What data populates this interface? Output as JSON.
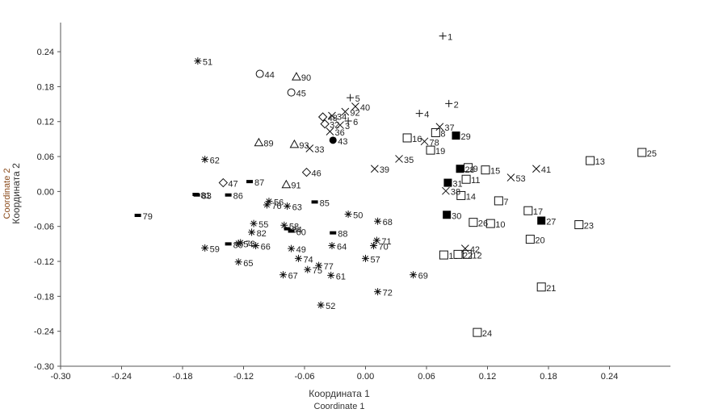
{
  "chart_data": {
    "type": "scatter",
    "xlabel": "Координата 1",
    "xlabel_en": "Coordinate 1",
    "ylabel": "Координата 2",
    "ylabel_en": "Coordinate 2",
    "xlim": [
      -0.3,
      0.3
    ],
    "ylim": [
      -0.3,
      0.29
    ],
    "xticks": [
      "-0.30",
      "-0.24",
      "-0.18",
      "-0.12",
      "-0.06",
      "0.00",
      "0.06",
      "0.12",
      "0.18",
      "0.24"
    ],
    "yticks": [
      "-0.30",
      "-0.24",
      "-0.18",
      "-0.12",
      "-0.06",
      "0.00",
      "0.06",
      "0.12",
      "0.18",
      "0.24"
    ],
    "xtick_values": [
      -0.3,
      -0.24,
      -0.18,
      -0.12,
      -0.06,
      0.0,
      0.06,
      0.12,
      0.18,
      0.24
    ],
    "ytick_values": [
      -0.3,
      -0.24,
      -0.18,
      -0.12,
      -0.06,
      0.0,
      0.06,
      0.12,
      0.18,
      0.24
    ],
    "points": [
      {
        "label": "1",
        "marker": "plus",
        "x": 0.076,
        "y": 0.267
      },
      {
        "label": "2",
        "marker": "plus",
        "x": 0.082,
        "y": 0.151
      },
      {
        "label": "3",
        "marker": "x",
        "x": -0.025,
        "y": 0.114
      },
      {
        "label": "4",
        "marker": "plus",
        "x": 0.053,
        "y": 0.134
      },
      {
        "label": "5",
        "marker": "plus",
        "x": -0.015,
        "y": 0.161
      },
      {
        "label": "6",
        "marker": "plus",
        "x": -0.017,
        "y": 0.121
      },
      {
        "label": "8",
        "marker": "square_open",
        "x": 0.069,
        "y": 0.101
      },
      {
        "label": "9",
        "marker": "square_open",
        "x": 0.101,
        "y": 0.041
      },
      {
        "label": "10",
        "marker": "square_open",
        "x": 0.123,
        "y": -0.055
      },
      {
        "label": "11",
        "marker": "square_open",
        "x": 0.099,
        "y": 0.021
      },
      {
        "label": "12",
        "marker": "square_open",
        "x": 0.1,
        "y": -0.108
      },
      {
        "label": "13",
        "marker": "square_open",
        "x": 0.221,
        "y": 0.053
      },
      {
        "label": "14",
        "marker": "square_open",
        "x": 0.094,
        "y": -0.007
      },
      {
        "label": "15",
        "marker": "square_open",
        "x": 0.118,
        "y": 0.037
      },
      {
        "label": "16",
        "marker": "square_open",
        "x": 0.041,
        "y": 0.092
      },
      {
        "label": "17",
        "marker": "square_open",
        "x": 0.16,
        "y": -0.033
      },
      {
        "label": "18",
        "marker": "square_open",
        "x": 0.077,
        "y": -0.109
      },
      {
        "label": "19",
        "marker": "square_open",
        "x": 0.064,
        "y": 0.071
      },
      {
        "label": "20",
        "marker": "square_open",
        "x": 0.162,
        "y": -0.082
      },
      {
        "label": "21",
        "marker": "square_open",
        "x": 0.173,
        "y": -0.164
      },
      {
        "label": "22",
        "marker": "square_open",
        "x": 0.091,
        "y": -0.108
      },
      {
        "label": "23",
        "marker": "square_open",
        "x": 0.21,
        "y": -0.057
      },
      {
        "label": "24",
        "marker": "square_open",
        "x": 0.11,
        "y": -0.242
      },
      {
        "label": "25",
        "marker": "square_open",
        "x": 0.272,
        "y": 0.067
      },
      {
        "label": "26",
        "marker": "square_open",
        "x": 0.106,
        "y": -0.053
      },
      {
        "label": "7",
        "marker": "square_open",
        "x": 0.131,
        "y": -0.016
      },
      {
        "label": "27",
        "marker": "square_filled",
        "x": 0.173,
        "y": -0.05
      },
      {
        "label": "28",
        "marker": "square_filled",
        "x": 0.093,
        "y": 0.039
      },
      {
        "label": "29",
        "marker": "square_filled",
        "x": 0.089,
        "y": 0.096
      },
      {
        "label": "30",
        "marker": "square_filled",
        "x": 0.08,
        "y": -0.04
      },
      {
        "label": "31",
        "marker": "square_filled",
        "x": 0.081,
        "y": 0.015
      },
      {
        "label": "33",
        "marker": "x",
        "x": -0.055,
        "y": 0.074
      },
      {
        "label": "34",
        "marker": "x",
        "x": -0.033,
        "y": 0.13
      },
      {
        "label": "35",
        "marker": "x",
        "x": 0.033,
        "y": 0.056
      },
      {
        "label": "36",
        "marker": "x",
        "x": -0.035,
        "y": 0.103
      },
      {
        "label": "37",
        "marker": "x",
        "x": 0.073,
        "y": 0.111
      },
      {
        "label": "38",
        "marker": "x",
        "x": 0.079,
        "y": 0.001
      },
      {
        "label": "39",
        "marker": "x",
        "x": 0.009,
        "y": 0.039
      },
      {
        "label": "40",
        "marker": "x",
        "x": -0.01,
        "y": 0.146
      },
      {
        "label": "41",
        "marker": "x",
        "x": 0.168,
        "y": 0.039
      },
      {
        "label": "42",
        "marker": "x",
        "x": 0.098,
        "y": -0.098
      },
      {
        "label": "53",
        "marker": "x",
        "x": 0.143,
        "y": 0.024
      },
      {
        "label": "92",
        "marker": "x",
        "x": -0.02,
        "y": 0.137
      },
      {
        "label": "78",
        "marker": "x",
        "x": 0.058,
        "y": 0.086
      },
      {
        "label": "48",
        "marker": "diamond_open",
        "x": -0.042,
        "y": 0.128
      },
      {
        "label": "32",
        "marker": "diamond_open",
        "x": -0.04,
        "y": 0.116
      },
      {
        "label": "46",
        "marker": "diamond_open",
        "x": -0.058,
        "y": 0.033
      },
      {
        "label": "47",
        "marker": "diamond_open",
        "x": -0.14,
        "y": 0.015
      },
      {
        "label": "43",
        "marker": "circle_filled",
        "x": -0.032,
        "y": 0.088
      },
      {
        "label": "44",
        "marker": "circle_open",
        "x": -0.104,
        "y": 0.202
      },
      {
        "label": "45",
        "marker": "circle_open",
        "x": -0.073,
        "y": 0.17
      },
      {
        "label": "89",
        "marker": "triangle_open",
        "x": -0.105,
        "y": 0.084
      },
      {
        "label": "90",
        "marker": "triangle_open",
        "x": -0.068,
        "y": 0.197
      },
      {
        "label": "91",
        "marker": "triangle_open",
        "x": -0.078,
        "y": 0.012
      },
      {
        "label": "93",
        "marker": "triangle_open",
        "x": -0.07,
        "y": 0.081
      },
      {
        "label": "51",
        "marker": "asterisk",
        "x": -0.165,
        "y": 0.224
      },
      {
        "label": "52",
        "marker": "asterisk",
        "x": -0.044,
        "y": -0.195
      },
      {
        "label": "54",
        "marker": "asterisk",
        "x": -0.125,
        "y": -0.089
      },
      {
        "label": "55",
        "marker": "asterisk",
        "x": -0.11,
        "y": -0.055
      },
      {
        "label": "56",
        "marker": "asterisk",
        "x": -0.095,
        "y": -0.017
      },
      {
        "label": "57",
        "marker": "asterisk",
        "x": 0.0,
        "y": -0.115
      },
      {
        "label": "58",
        "marker": "asterisk",
        "x": -0.08,
        "y": -0.058
      },
      {
        "label": "59",
        "marker": "asterisk",
        "x": -0.158,
        "y": -0.097
      },
      {
        "label": "61",
        "marker": "asterisk",
        "x": -0.034,
        "y": -0.144
      },
      {
        "label": "62",
        "marker": "asterisk",
        "x": -0.158,
        "y": 0.055
      },
      {
        "label": "63",
        "marker": "asterisk",
        "x": -0.077,
        "y": -0.025
      },
      {
        "label": "64",
        "marker": "asterisk",
        "x": -0.033,
        "y": -0.093
      },
      {
        "label": "65",
        "marker": "asterisk",
        "x": -0.125,
        "y": -0.121
      },
      {
        "label": "66",
        "marker": "asterisk",
        "x": -0.108,
        "y": -0.093
      },
      {
        "label": "67",
        "marker": "asterisk",
        "x": -0.081,
        "y": -0.143
      },
      {
        "label": "68",
        "marker": "asterisk",
        "x": 0.012,
        "y": -0.051
      },
      {
        "label": "69",
        "marker": "asterisk",
        "x": 0.047,
        "y": -0.143
      },
      {
        "label": "70",
        "marker": "asterisk",
        "x": 0.008,
        "y": -0.093
      },
      {
        "label": "71",
        "marker": "asterisk",
        "x": 0.011,
        "y": -0.084
      },
      {
        "label": "72",
        "marker": "asterisk",
        "x": 0.012,
        "y": -0.172
      },
      {
        "label": "73",
        "marker": "asterisk",
        "x": -0.123,
        "y": -0.088
      },
      {
        "label": "74",
        "marker": "asterisk",
        "x": -0.066,
        "y": -0.115
      },
      {
        "label": "75",
        "marker": "asterisk",
        "x": -0.057,
        "y": -0.134
      },
      {
        "label": "76",
        "marker": "asterisk",
        "x": -0.097,
        "y": -0.023
      },
      {
        "label": "77",
        "marker": "asterisk",
        "x": -0.046,
        "y": -0.127
      },
      {
        "label": "49",
        "marker": "asterisk",
        "x": -0.073,
        "y": -0.098
      },
      {
        "label": "50",
        "marker": "asterisk",
        "x": -0.017,
        "y": -0.039
      },
      {
        "label": "82",
        "marker": "asterisk",
        "x": -0.112,
        "y": -0.07
      },
      {
        "label": "79",
        "marker": "bar_filled",
        "x": -0.224,
        "y": -0.041
      },
      {
        "label": "80",
        "marker": "bar_filled",
        "x": -0.135,
        "y": -0.09
      },
      {
        "label": "81",
        "marker": "bar_filled",
        "x": -0.167,
        "y": -0.005
      },
      {
        "label": "83",
        "marker": "bar_filled",
        "x": -0.166,
        "y": -0.006
      },
      {
        "label": "84",
        "marker": "bar_filled",
        "x": -0.077,
        "y": -0.064
      },
      {
        "label": "85",
        "marker": "bar_filled",
        "x": -0.05,
        "y": -0.018
      },
      {
        "label": "86",
        "marker": "bar_filled",
        "x": -0.135,
        "y": -0.006
      },
      {
        "label": "87",
        "marker": "bar_filled",
        "x": -0.114,
        "y": 0.017
      },
      {
        "label": "88",
        "marker": "bar_filled",
        "x": -0.032,
        "y": -0.071
      },
      {
        "label": "60",
        "marker": "bar_filled",
        "x": -0.073,
        "y": -0.068
      }
    ]
  }
}
